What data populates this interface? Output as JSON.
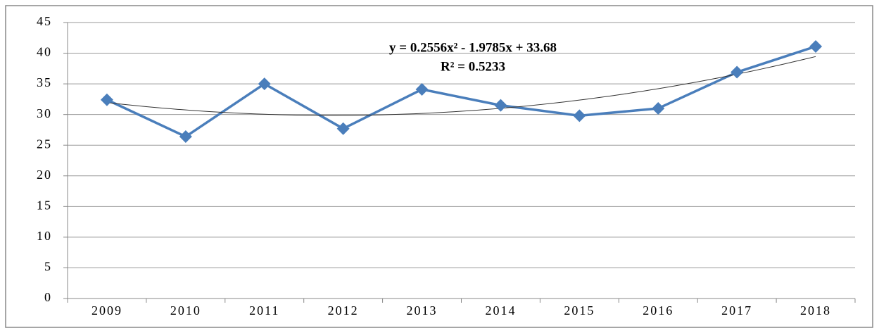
{
  "chart_data": {
    "type": "line",
    "categories": [
      "2009",
      "2010",
      "2011",
      "2012",
      "2013",
      "2014",
      "2015",
      "2016",
      "2017",
      "2018"
    ],
    "series": [
      {
        "color": "#4a7ebb",
        "values": [
          32.4,
          26.4,
          35,
          27.7,
          34.1,
          31.5,
          29.8,
          31,
          36.9,
          41.1
        ]
      }
    ],
    "ylim": [
      0,
      45
    ],
    "yticks": [
      0,
      5,
      10,
      15,
      20,
      25,
      30,
      35,
      40,
      45
    ],
    "grid": true,
    "trendline": {
      "type": "polynomial",
      "equation": "y = 0.2556x² - 1.9785x + 33.68",
      "r_squared": "R² = 0.5233",
      "coefficients": [
        0.2556,
        -1.9785,
        33.68
      ],
      "color": "#333333"
    }
  }
}
